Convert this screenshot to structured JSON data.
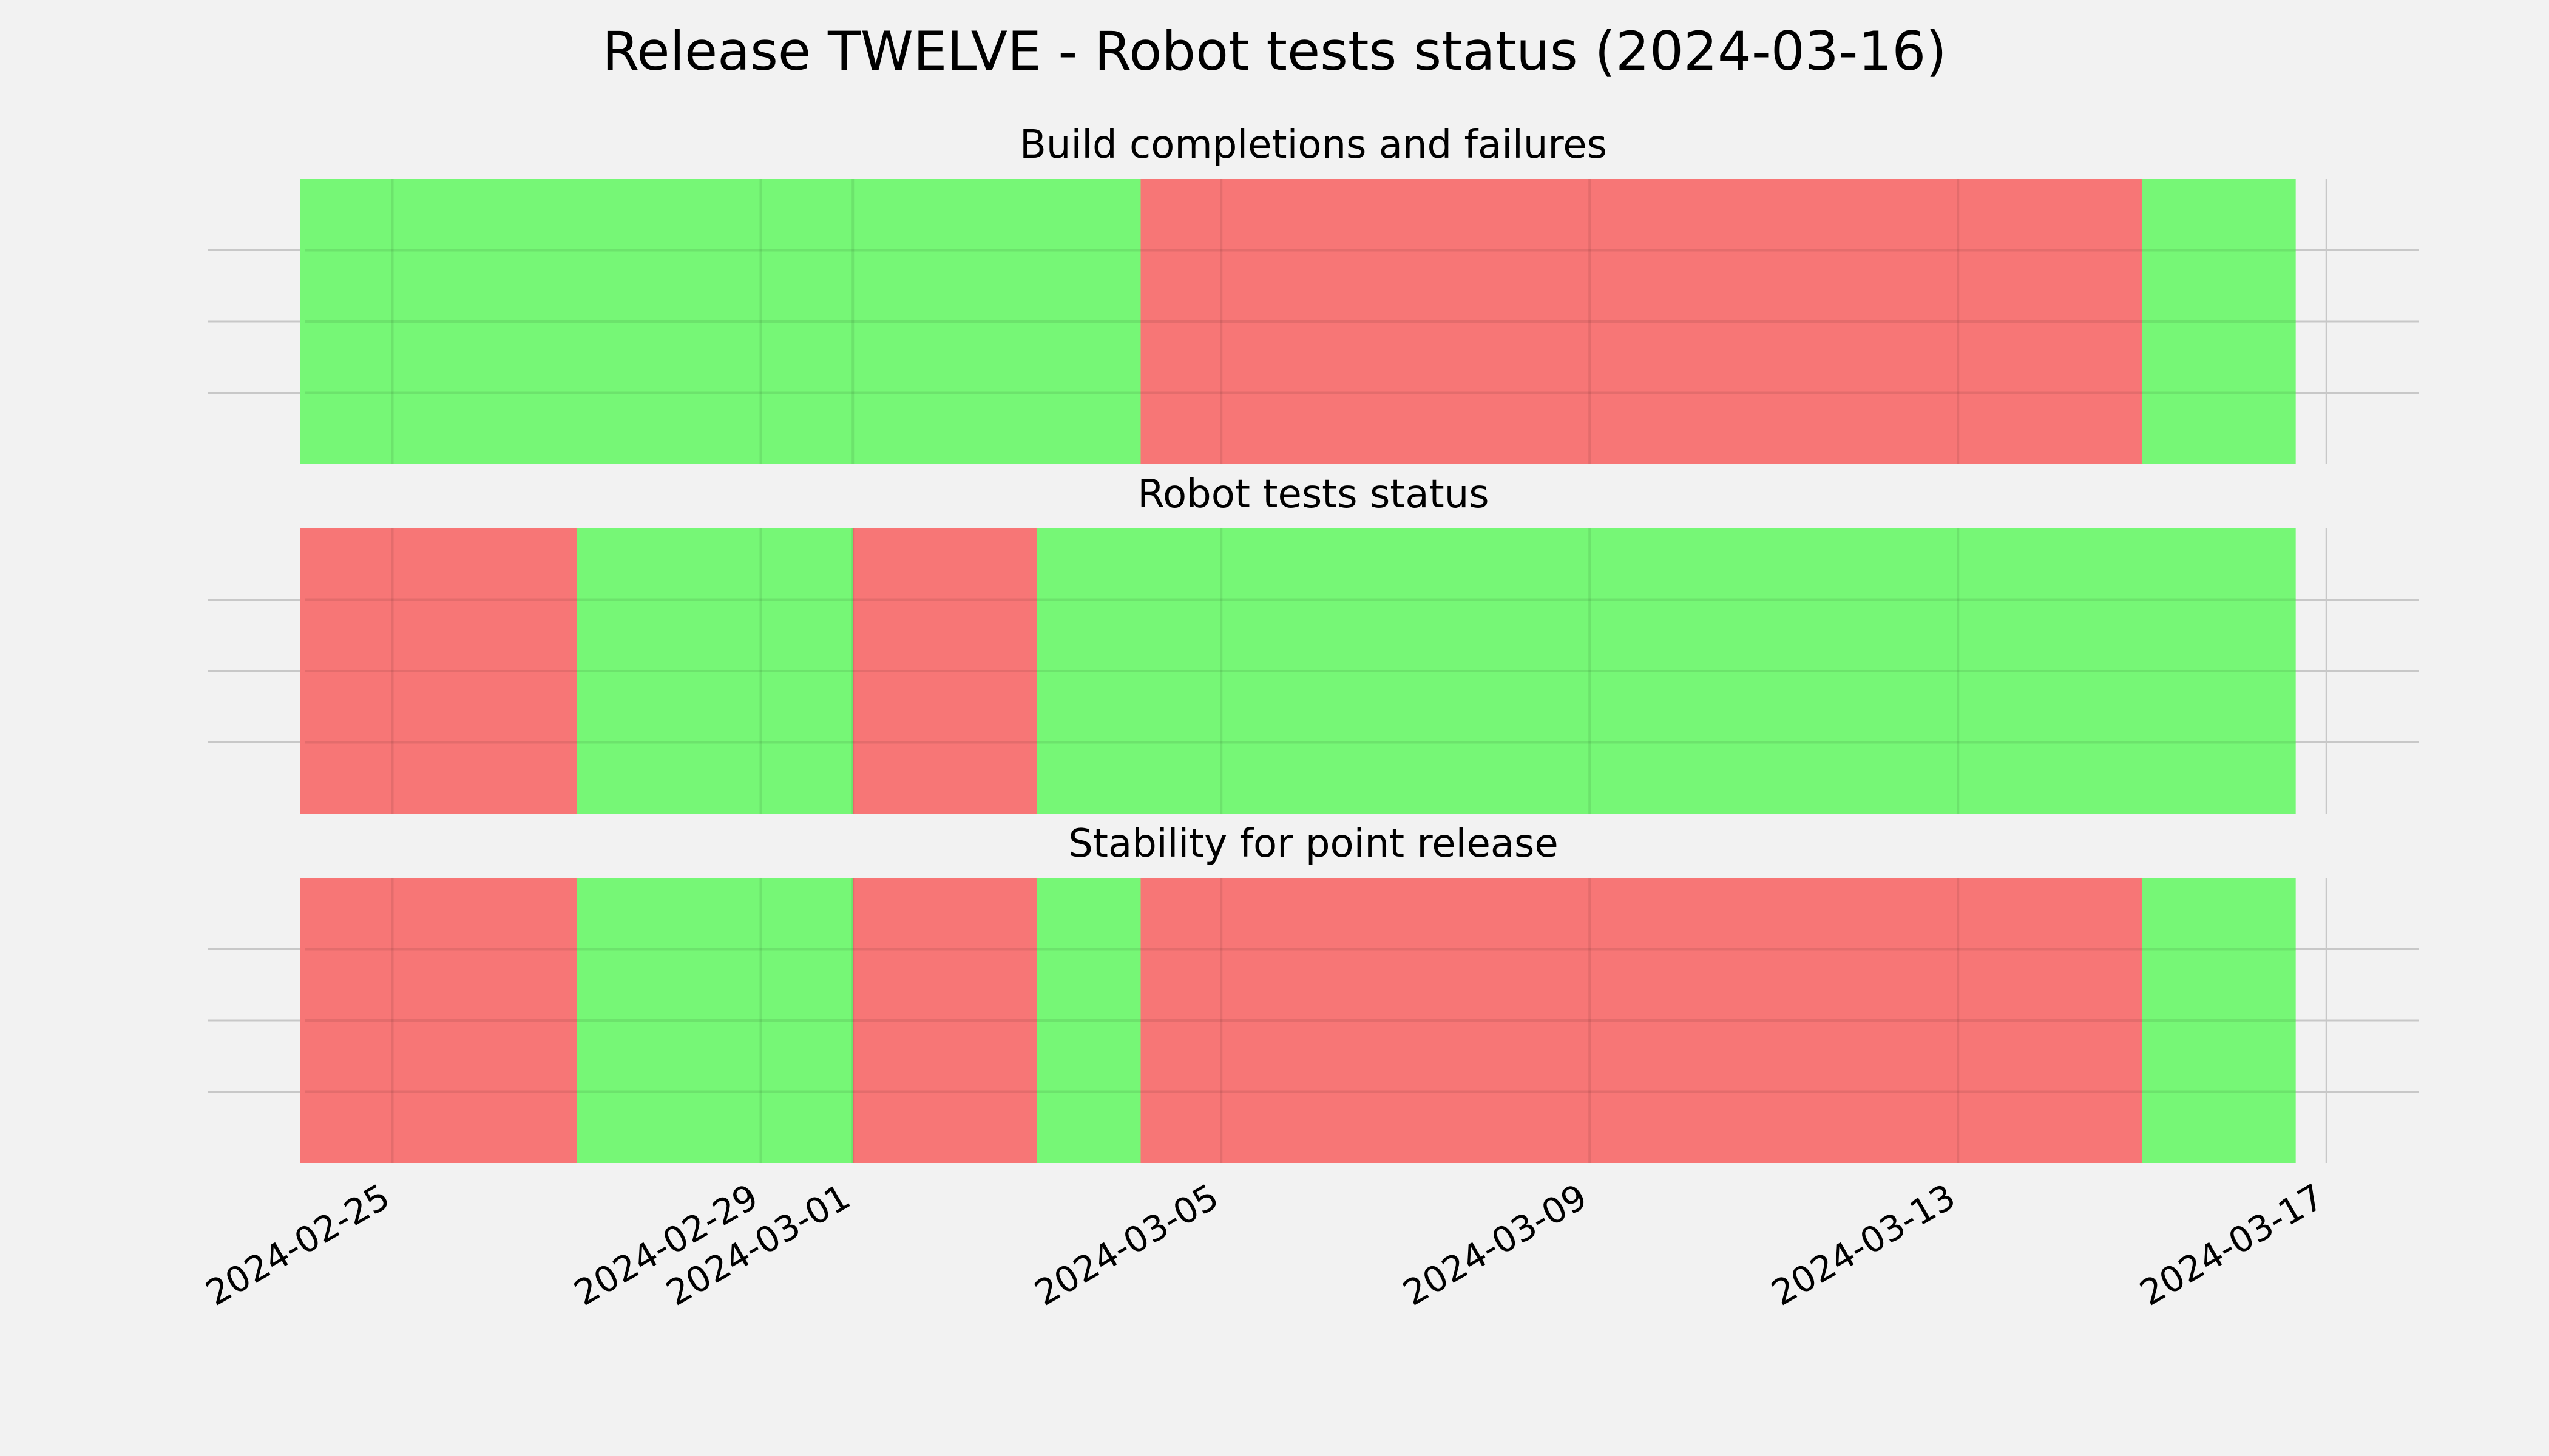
{
  "chart_data": {
    "type": "timeline",
    "title": "Release TWELVE - Robot tests status (2024-03-16)",
    "x_range": [
      "2024-02-23",
      "2024-03-18"
    ],
    "x_ticks": [
      "2024-02-25",
      "2024-02-29",
      "2024-03-01",
      "2024-03-05",
      "2024-03-09",
      "2024-03-13",
      "2024-03-17"
    ],
    "status_colors": {
      "pass": "#76f776",
      "fail": "#f77676"
    },
    "grid": true,
    "panels": [
      {
        "title": "Build completions and failures",
        "segments": [
          {
            "start": "2024-02-24",
            "end": "2024-03-04 03:00",
            "status": "pass"
          },
          {
            "start": "2024-03-04 03:00",
            "end": "2024-03-15 00:00",
            "status": "fail"
          },
          {
            "start": "2024-03-15 00:00",
            "end": "2024-03-16 16:00",
            "status": "pass"
          }
        ]
      },
      {
        "title": "Robot tests status",
        "segments": [
          {
            "start": "2024-02-24",
            "end": "2024-02-27",
            "status": "fail"
          },
          {
            "start": "2024-02-27",
            "end": "2024-03-01 00:00",
            "status": "pass"
          },
          {
            "start": "2024-03-01 00:00",
            "end": "2024-03-03 00:00",
            "status": "fail"
          },
          {
            "start": "2024-03-03 00:00",
            "end": "2024-03-16 16:00",
            "status": "pass"
          }
        ]
      },
      {
        "title": "Stability for point release",
        "segments": [
          {
            "start": "2024-02-24",
            "end": "2024-02-27",
            "status": "fail"
          },
          {
            "start": "2024-02-27",
            "end": "2024-03-01 00:00",
            "status": "pass"
          },
          {
            "start": "2024-03-01 00:00",
            "end": "2024-03-03 00:00",
            "status": "fail"
          },
          {
            "start": "2024-03-03 00:00",
            "end": "2024-03-04 03:00",
            "status": "pass"
          },
          {
            "start": "2024-03-04 03:00",
            "end": "2024-03-15 00:00",
            "status": "fail"
          },
          {
            "start": "2024-03-15 00:00",
            "end": "2024-03-16 16:00",
            "status": "pass"
          }
        ]
      }
    ]
  }
}
